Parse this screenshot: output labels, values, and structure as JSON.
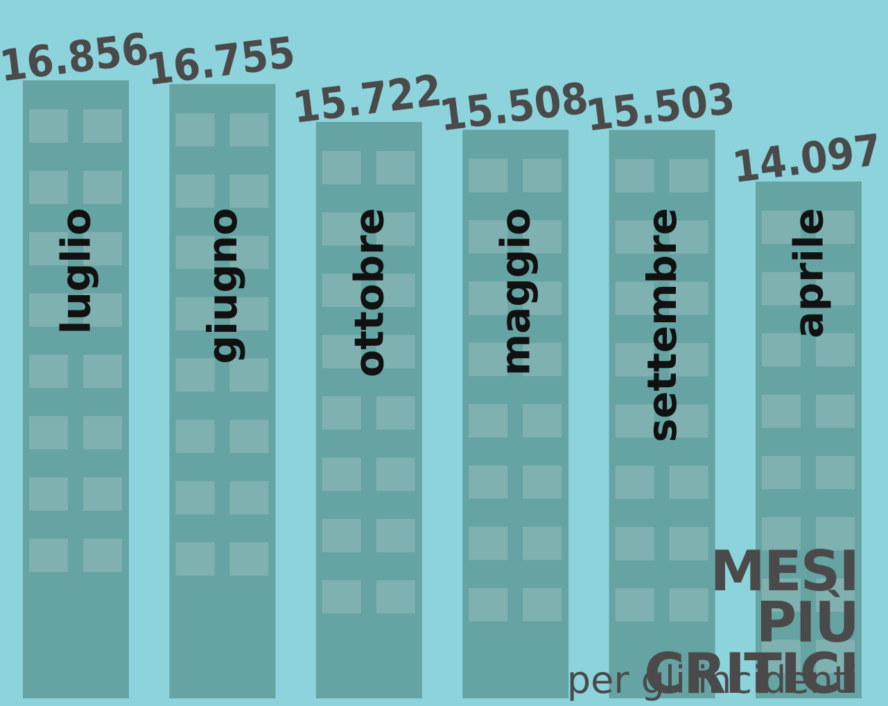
{
  "chart_data": {
    "type": "bar",
    "title": "MESI PIÙ CRITICI",
    "subtitle": "per gli incidenti",
    "categories": [
      "luglio",
      "giugno",
      "ottobre",
      "maggio",
      "settembre",
      "aprile"
    ],
    "values": [
      16856,
      16755,
      15722,
      15508,
      15503,
      14097
    ],
    "value_labels": [
      "16.856",
      "16.755",
      "15.722",
      "15.508",
      "15.503",
      "14.097"
    ],
    "color": "#66a3a3"
  }
}
